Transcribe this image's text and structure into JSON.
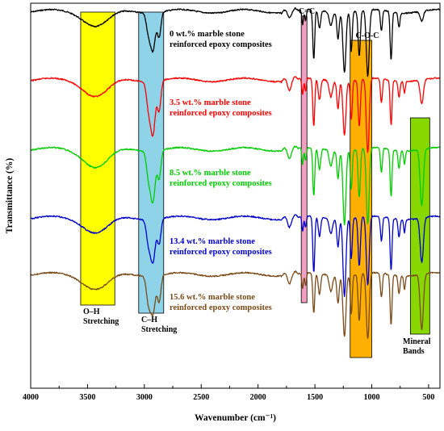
{
  "chart_data": {
    "type": "line",
    "title": "",
    "xlabel": "Wavenumber (cm⁻¹)",
    "ylabel": "Transmittance (%)",
    "xlim": [
      4000,
      400
    ],
    "x_reversed": true,
    "x_ticks": [
      4000,
      3500,
      3000,
      2500,
      2000,
      1500,
      1000,
      500
    ],
    "y_ticks_shown": false,
    "grid": false,
    "series": [
      {
        "name": "0 wt.% marble stone reinforced epoxy composites",
        "label_lines": [
          "0 wt.% marble stone",
          "reinforced epoxy composites"
        ],
        "color": "#000000",
        "baseline": 14,
        "dips": [
          {
            "center": 3420,
            "width": 150,
            "depth": 18
          },
          {
            "center": 2965,
            "width": 25,
            "depth": 22
          },
          {
            "center": 2925,
            "width": 30,
            "depth": 46
          },
          {
            "center": 2870,
            "width": 22,
            "depth": 30
          },
          {
            "center": 1725,
            "width": 20,
            "depth": 4
          },
          {
            "center": 1608,
            "width": 10,
            "depth": 18
          },
          {
            "center": 1582,
            "width": 10,
            "depth": 14
          },
          {
            "center": 1510,
            "width": 12,
            "depth": 62
          },
          {
            "center": 1460,
            "width": 15,
            "depth": 22
          },
          {
            "center": 1360,
            "width": 20,
            "depth": 16
          },
          {
            "center": 1297,
            "width": 14,
            "depth": 32
          },
          {
            "center": 1240,
            "width": 18,
            "depth": 74
          },
          {
            "center": 1180,
            "width": 12,
            "depth": 48
          },
          {
            "center": 1110,
            "width": 14,
            "depth": 56
          },
          {
            "center": 1035,
            "width": 18,
            "depth": 82
          },
          {
            "center": 915,
            "width": 12,
            "depth": 26
          },
          {
            "center": 830,
            "width": 12,
            "depth": 60
          },
          {
            "center": 760,
            "width": 12,
            "depth": 18
          },
          {
            "center": 560,
            "width": 20,
            "depth": 12
          }
        ]
      },
      {
        "name": "3.5 wt.% marble stone reinforced epoxy composites",
        "label_lines": [
          "3.5 wt.% marble stone",
          "reinforced epoxy composites"
        ],
        "color": "#ff0000",
        "baseline": 99,
        "dips": [
          {
            "center": 3420,
            "width": 150,
            "depth": 20
          },
          {
            "center": 2965,
            "width": 25,
            "depth": 28
          },
          {
            "center": 2925,
            "width": 30,
            "depth": 65
          },
          {
            "center": 2870,
            "width": 22,
            "depth": 36
          },
          {
            "center": 1725,
            "width": 20,
            "depth": 10
          },
          {
            "center": 1608,
            "width": 10,
            "depth": 20
          },
          {
            "center": 1582,
            "width": 10,
            "depth": 16
          },
          {
            "center": 1510,
            "width": 12,
            "depth": 60
          },
          {
            "center": 1460,
            "width": 15,
            "depth": 26
          },
          {
            "center": 1360,
            "width": 20,
            "depth": 20
          },
          {
            "center": 1297,
            "width": 14,
            "depth": 34
          },
          {
            "center": 1240,
            "width": 18,
            "depth": 66
          },
          {
            "center": 1180,
            "width": 12,
            "depth": 48
          },
          {
            "center": 1110,
            "width": 14,
            "depth": 58
          },
          {
            "center": 1035,
            "width": 18,
            "depth": 92
          },
          {
            "center": 915,
            "width": 12,
            "depth": 30
          },
          {
            "center": 830,
            "width": 12,
            "depth": 56
          },
          {
            "center": 760,
            "width": 12,
            "depth": 20
          },
          {
            "center": 712,
            "width": 10,
            "depth": 14
          },
          {
            "center": 560,
            "width": 20,
            "depth": 30
          }
        ]
      },
      {
        "name": "8.5 wt.% marble stone reinforced epoxy composites",
        "label_lines": [
          "8.5 wt.% marble stone",
          "reinforced epoxy composites"
        ],
        "color": "#00cc00",
        "baseline": 185,
        "dips": [
          {
            "center": 3420,
            "width": 150,
            "depth": 22
          },
          {
            "center": 2965,
            "width": 25,
            "depth": 28
          },
          {
            "center": 2925,
            "width": 30,
            "depth": 62
          },
          {
            "center": 2870,
            "width": 22,
            "depth": 34
          },
          {
            "center": 1725,
            "width": 20,
            "depth": 8
          },
          {
            "center": 1608,
            "width": 10,
            "depth": 20
          },
          {
            "center": 1582,
            "width": 10,
            "depth": 16
          },
          {
            "center": 1510,
            "width": 12,
            "depth": 60
          },
          {
            "center": 1460,
            "width": 15,
            "depth": 26
          },
          {
            "center": 1360,
            "width": 20,
            "depth": 20
          },
          {
            "center": 1297,
            "width": 14,
            "depth": 34
          },
          {
            "center": 1240,
            "width": 18,
            "depth": 92
          },
          {
            "center": 1180,
            "width": 12,
            "depth": 48
          },
          {
            "center": 1110,
            "width": 14,
            "depth": 60
          },
          {
            "center": 1035,
            "width": 18,
            "depth": 95
          },
          {
            "center": 915,
            "width": 12,
            "depth": 30
          },
          {
            "center": 830,
            "width": 12,
            "depth": 58
          },
          {
            "center": 760,
            "width": 12,
            "depth": 22
          },
          {
            "center": 712,
            "width": 10,
            "depth": 16
          },
          {
            "center": 560,
            "width": 20,
            "depth": 70
          }
        ]
      },
      {
        "name": "13.4 wt.% marble stone reinforced epoxy composites",
        "label_lines": [
          "13.4 wt.% marble stone",
          "reinforced epoxy composites"
        ],
        "color": "#0000cc",
        "baseline": 270,
        "dips": [
          {
            "center": 3420,
            "width": 150,
            "depth": 18
          },
          {
            "center": 2965,
            "width": 25,
            "depth": 26
          },
          {
            "center": 2925,
            "width": 30,
            "depth": 52
          },
          {
            "center": 2870,
            "width": 22,
            "depth": 30
          },
          {
            "center": 1725,
            "width": 20,
            "depth": 8
          },
          {
            "center": 1608,
            "width": 10,
            "depth": 18
          },
          {
            "center": 1582,
            "width": 10,
            "depth": 14
          },
          {
            "center": 1510,
            "width": 12,
            "depth": 70
          },
          {
            "center": 1460,
            "width": 15,
            "depth": 24
          },
          {
            "center": 1360,
            "width": 20,
            "depth": 18
          },
          {
            "center": 1297,
            "width": 14,
            "depth": 34
          },
          {
            "center": 1240,
            "width": 18,
            "depth": 95
          },
          {
            "center": 1180,
            "width": 12,
            "depth": 50
          },
          {
            "center": 1110,
            "width": 14,
            "depth": 60
          },
          {
            "center": 1035,
            "width": 18,
            "depth": 85
          },
          {
            "center": 915,
            "width": 12,
            "depth": 30
          },
          {
            "center": 830,
            "width": 12,
            "depth": 65
          },
          {
            "center": 760,
            "width": 12,
            "depth": 22
          },
          {
            "center": 712,
            "width": 10,
            "depth": 16
          },
          {
            "center": 560,
            "width": 20,
            "depth": 55
          }
        ]
      },
      {
        "name": "15.6 wt.% marble stone reinforced epoxy composites",
        "label_lines": [
          "15.6 wt.% marble stone",
          "reinforced epoxy composites"
        ],
        "color": "#7a4a18",
        "baseline": 340,
        "dips": [
          {
            "center": 3420,
            "width": 150,
            "depth": 18
          },
          {
            "center": 2965,
            "width": 25,
            "depth": 30
          },
          {
            "center": 2925,
            "width": 30,
            "depth": 46
          },
          {
            "center": 2870,
            "width": 22,
            "depth": 32
          },
          {
            "center": 1725,
            "width": 20,
            "depth": 8
          },
          {
            "center": 1608,
            "width": 10,
            "depth": 20
          },
          {
            "center": 1582,
            "width": 10,
            "depth": 16
          },
          {
            "center": 1510,
            "width": 12,
            "depth": 50
          },
          {
            "center": 1460,
            "width": 15,
            "depth": 26
          },
          {
            "center": 1360,
            "width": 20,
            "depth": 20
          },
          {
            "center": 1297,
            "width": 14,
            "depth": 34
          },
          {
            "center": 1240,
            "width": 18,
            "depth": 75
          },
          {
            "center": 1180,
            "width": 12,
            "depth": 48
          },
          {
            "center": 1110,
            "width": 14,
            "depth": 58
          },
          {
            "center": 1035,
            "width": 18,
            "depth": 82
          },
          {
            "center": 915,
            "width": 12,
            "depth": 30
          },
          {
            "center": 830,
            "width": 12,
            "depth": 62
          },
          {
            "center": 760,
            "width": 12,
            "depth": 22
          },
          {
            "center": 712,
            "width": 10,
            "depth": 16
          },
          {
            "center": 560,
            "width": 20,
            "depth": 68
          }
        ]
      }
    ],
    "annotation_bands": [
      {
        "id": "oh",
        "from": 3560,
        "to": 3260,
        "color": "#ffff00",
        "label_lines": [
          "O–H",
          "Stretching"
        ]
      },
      {
        "id": "ch",
        "from": 3050,
        "to": 2830,
        "color": "#8fd3e8",
        "label_lines": [
          "C–H",
          "Stretching"
        ]
      },
      {
        "id": "cc",
        "from": 1620,
        "to": 1570,
        "color": "#f0a0c0",
        "label_lines": [
          "C=C"
        ]
      },
      {
        "id": "coc",
        "from": 1190,
        "to": 1000,
        "color": "#ffb000",
        "label_lines": [
          "C-O-C"
        ]
      },
      {
        "id": "mineral",
        "from": 660,
        "to": 490,
        "color": "#88d800",
        "label_lines": [
          "Mineral",
          "Bands"
        ]
      }
    ]
  }
}
